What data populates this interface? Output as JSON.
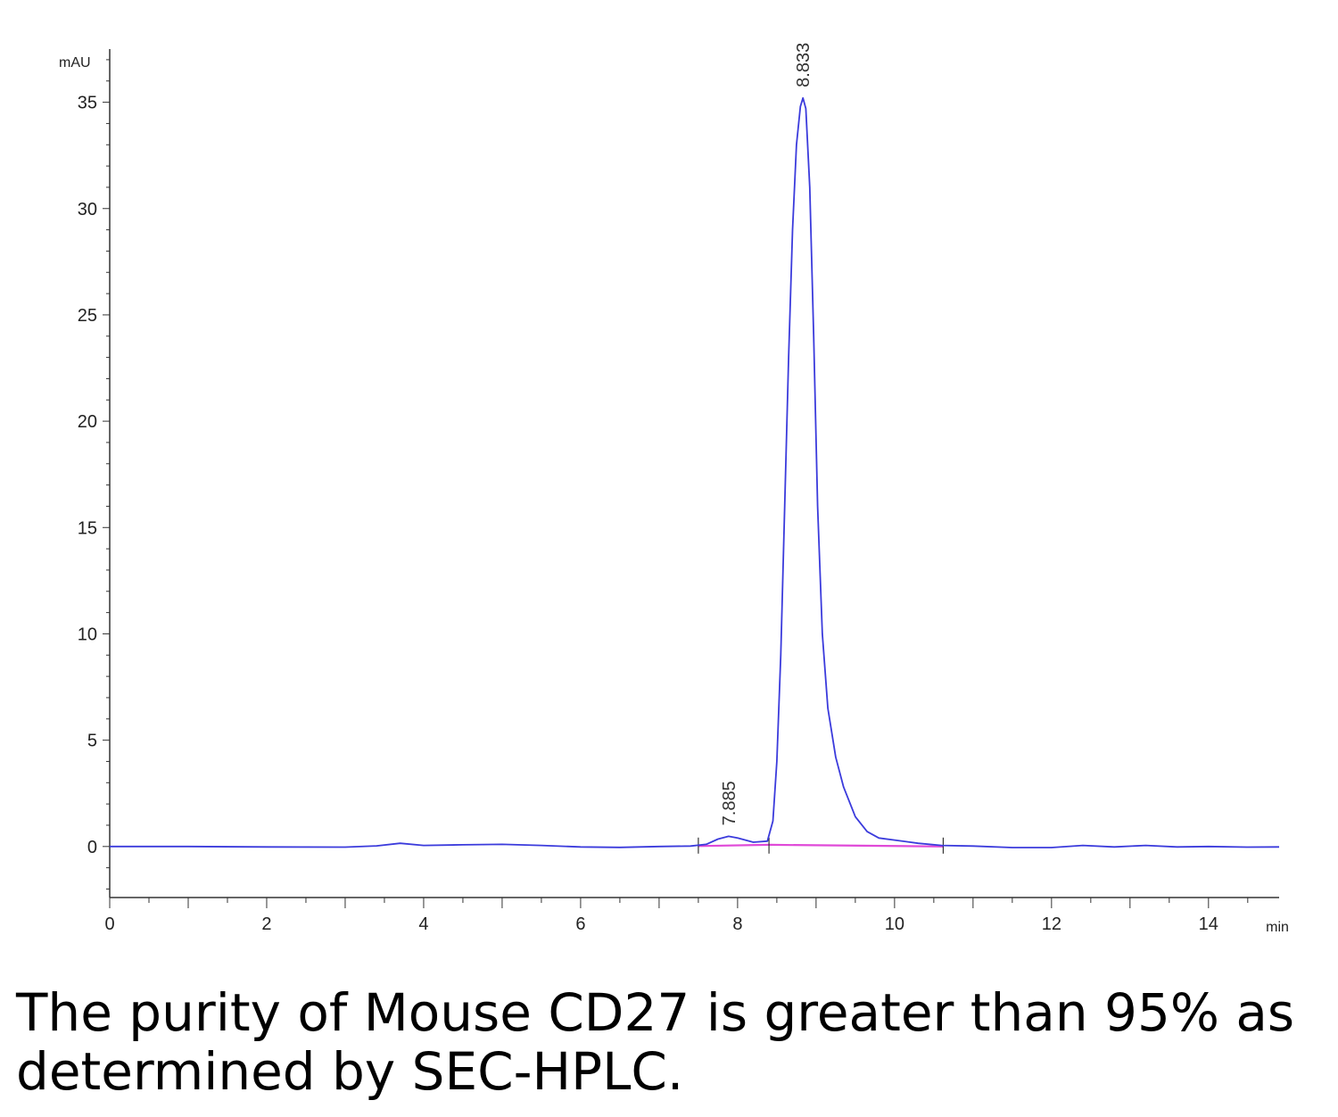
{
  "chart_data": {
    "type": "line",
    "xlabel": "min",
    "ylabel": "mAU",
    "xlim": [
      0,
      14.9
    ],
    "ylim": [
      -2.4,
      37.5
    ],
    "x_ticks": [
      0,
      2,
      4,
      6,
      8,
      10,
      12,
      14
    ],
    "y_ticks": [
      0,
      5,
      10,
      15,
      20,
      25,
      30,
      35
    ],
    "grid": false,
    "legend": "none",
    "series": [
      {
        "color": "#3b3bdc",
        "points": [
          [
            0,
            0.0
          ],
          [
            1.0,
            0.0
          ],
          [
            2.0,
            -0.02
          ],
          [
            3.0,
            -0.03
          ],
          [
            3.4,
            0.03
          ],
          [
            3.7,
            0.15
          ],
          [
            4.0,
            0.05
          ],
          [
            4.5,
            0.08
          ],
          [
            5.0,
            0.1
          ],
          [
            5.5,
            0.05
          ],
          [
            6.0,
            -0.02
          ],
          [
            6.5,
            -0.04
          ],
          [
            7.0,
            0.0
          ],
          [
            7.4,
            0.02
          ],
          [
            7.6,
            0.1
          ],
          [
            7.75,
            0.35
          ],
          [
            7.885,
            0.48
          ],
          [
            8.0,
            0.4
          ],
          [
            8.2,
            0.2
          ],
          [
            8.38,
            0.25
          ],
          [
            8.45,
            1.2
          ],
          [
            8.5,
            4.0
          ],
          [
            8.55,
            9.0
          ],
          [
            8.6,
            16.0
          ],
          [
            8.65,
            23.0
          ],
          [
            8.7,
            29.0
          ],
          [
            8.75,
            33.0
          ],
          [
            8.8,
            34.8
          ],
          [
            8.833,
            35.2
          ],
          [
            8.87,
            34.7
          ],
          [
            8.92,
            31.0
          ],
          [
            8.97,
            24.0
          ],
          [
            9.02,
            16.0
          ],
          [
            9.08,
            10.0
          ],
          [
            9.15,
            6.5
          ],
          [
            9.25,
            4.2
          ],
          [
            9.35,
            2.8
          ],
          [
            9.5,
            1.4
          ],
          [
            9.65,
            0.7
          ],
          [
            9.8,
            0.4
          ],
          [
            10.0,
            0.3
          ],
          [
            10.3,
            0.15
          ],
          [
            10.6,
            0.05
          ],
          [
            11.0,
            0.02
          ],
          [
            11.5,
            -0.05
          ],
          [
            12.0,
            -0.05
          ],
          [
            12.4,
            0.05
          ],
          [
            12.8,
            -0.02
          ],
          [
            13.2,
            0.05
          ],
          [
            13.6,
            -0.02
          ],
          [
            14.0,
            0.0
          ],
          [
            14.5,
            -0.03
          ],
          [
            14.9,
            -0.02
          ]
        ]
      }
    ],
    "baseline": {
      "color": "#e04ad8",
      "segments": [
        {
          "x": [
            7.5,
            8.4
          ],
          "y": [
            0.02,
            0.08
          ]
        },
        {
          "x": [
            8.4,
            10.62
          ],
          "y": [
            0.08,
            0.0
          ]
        }
      ],
      "markers_x": [
        7.5,
        8.4,
        10.62
      ]
    },
    "annotations": [
      {
        "x": 7.885,
        "y": 0.48,
        "text": "7.885"
      },
      {
        "x": 8.833,
        "y": 35.2,
        "text": "8.833"
      }
    ]
  },
  "caption": "The purity of Mouse CD27 is greater than 95% as determined by SEC-HPLC."
}
